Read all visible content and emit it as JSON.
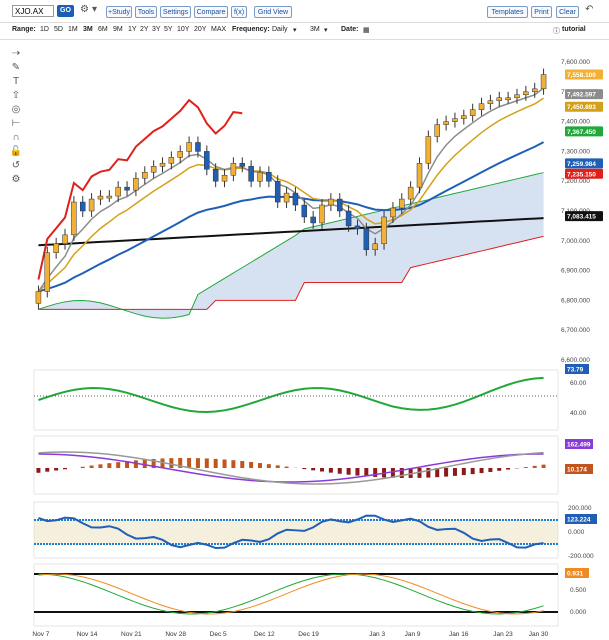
{
  "toolbar": {
    "symbol": "XJO.AX",
    "go_label": "GO",
    "study_label": "+Study",
    "tools_label": "Tools",
    "settings_label": "Settings",
    "compare_label": "Compare",
    "fx_label": "f(x)",
    "gridview_label": "Grid View",
    "templates_label": "Templates",
    "print_label": "Print",
    "clear_label": "Clear"
  },
  "rangebar": {
    "range_label": "Range:",
    "ranges": [
      "1D",
      "5D",
      "1M",
      "3M",
      "6M",
      "9M",
      "1Y",
      "2Y",
      "3Y",
      "5Y",
      "10Y",
      "20Y",
      "MAX"
    ],
    "selected_range": "3M",
    "frequency_label": "Frequency:",
    "frequency_value": "Daily",
    "period_value": "3M",
    "date_label": "Date:",
    "tutorial_label": "tutorial"
  },
  "price_axis": {
    "ticks": [
      "7,600.000",
      "7,500.000",
      "7,400.000",
      "7,300.000",
      "7,200.000",
      "7,100.000",
      "7,000.000",
      "6,900.000",
      "6,800.000",
      "6,700.000",
      "6,600.000"
    ],
    "badges": [
      {
        "label": "7,558.100",
        "color": "#f2b035",
        "text_color": "#fff"
      },
      {
        "label": "7,492.597",
        "color": "#8c8c8c",
        "text_color": "#fff"
      },
      {
        "label": "7,450.893",
        "color": "#d4a017",
        "text_color": "#fff"
      },
      {
        "label": "7,367.450",
        "color": "#22a83a",
        "text_color": "#fff"
      },
      {
        "label": "7,259.984",
        "color": "#1f5fb5",
        "text_color": "#fff"
      },
      {
        "label": "7,235.150",
        "color": "#e0201b",
        "text_color": "#fff"
      },
      {
        "label": "7,083.415",
        "color": "#111111",
        "text_color": "#fff"
      }
    ]
  },
  "panel2": {
    "ticks": [
      "60.00",
      "40.00"
    ],
    "badge": "73.79",
    "badge_color": "#1f5fb5"
  },
  "panel3": {
    "badges": [
      {
        "label": "162.499",
        "color": "#8a3ad9"
      },
      {
        "label": "10.174",
        "color": "#c0561b"
      }
    ]
  },
  "panel4": {
    "ticks": [
      "200.000",
      "0.000",
      "-200.000"
    ],
    "badge": "123.224",
    "badge_color": "#1f5fb5"
  },
  "panel5": {
    "ticks": [
      "0.500",
      "0.000"
    ],
    "badges": [
      {
        "label": "0.931",
        "color": "#f08a24"
      }
    ]
  },
  "dates": [
    "Nov 7",
    "Nov 14",
    "Nov 21",
    "Nov 28",
    "Dec 5",
    "Dec 12",
    "Dec 19",
    "Jan 3",
    "Jan 9",
    "Jan 16",
    "Jan 23",
    "Jan 30"
  ],
  "chart_data": {
    "type": "candlestick",
    "x": [
      "Nov 7",
      "Nov 8",
      "Nov 9",
      "Nov 10",
      "Nov 11",
      "Nov 14",
      "Nov 15",
      "Nov 16",
      "Nov 17",
      "Nov 18",
      "Nov 21",
      "Nov 22",
      "Nov 23",
      "Nov 24",
      "Nov 25",
      "Nov 28",
      "Nov 29",
      "Nov 30",
      "Dec 1",
      "Dec 2",
      "Dec 5",
      "Dec 6",
      "Dec 7",
      "Dec 8",
      "Dec 9",
      "Dec 12",
      "Dec 13",
      "Dec 14",
      "Dec 15",
      "Dec 16",
      "Dec 19",
      "Dec 20",
      "Dec 21",
      "Dec 22",
      "Dec 23",
      "Dec 28",
      "Dec 29",
      "Dec 30",
      "Jan 3",
      "Jan 4",
      "Jan 5",
      "Jan 6",
      "Jan 9",
      "Jan 10",
      "Jan 11",
      "Jan 12",
      "Jan 13",
      "Jan 16",
      "Jan 17",
      "Jan 18",
      "Jan 19",
      "Jan 20",
      "Jan 23",
      "Jan 24",
      "Jan 25",
      "Jan 27",
      "Jan 30",
      "Jan 31"
    ],
    "close": [
      6830,
      6960,
      6990,
      7020,
      7130,
      7100,
      7140,
      7150,
      7150,
      7180,
      7170,
      7210,
      7230,
      7250,
      7260,
      7280,
      7300,
      7330,
      7300,
      7240,
      7200,
      7220,
      7260,
      7250,
      7200,
      7230,
      7200,
      7130,
      7160,
      7120,
      7080,
      7060,
      7120,
      7140,
      7100,
      7050,
      7040,
      6970,
      6990,
      7080,
      7110,
      7140,
      7180,
      7260,
      7350,
      7390,
      7400,
      7410,
      7420,
      7440,
      7460,
      7470,
      7480,
      7480,
      7490,
      7500,
      7510,
      7558
    ],
    "ylim": [
      6600,
      7600
    ],
    "series": [
      {
        "name": "ema_short",
        "color": "#8c8c8c"
      },
      {
        "name": "ema_mid",
        "color": "#d4a017"
      },
      {
        "name": "ema_50",
        "color": "#1f5fb5"
      },
      {
        "name": "sma_200",
        "color": "#111111"
      },
      {
        "name": "psar",
        "color": "#e0201b"
      },
      {
        "name": "cloud_upper",
        "color": "#22a83a"
      },
      {
        "name": "cloud_lower",
        "color": "#e0201b"
      }
    ]
  }
}
